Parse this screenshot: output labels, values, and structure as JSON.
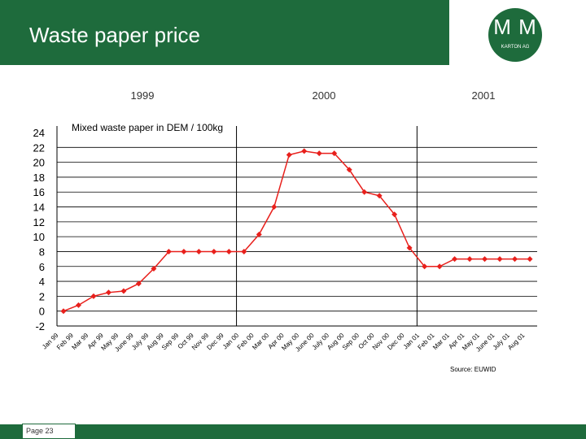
{
  "header": {
    "title": "Waste paper price",
    "logo_text": "M M",
    "logo_subtext": "KARTON AG"
  },
  "footer": {
    "page_label": "Page 23"
  },
  "colors": {
    "brand_green": "#1e6b3c",
    "series_red": "#e8201c"
  },
  "chart_data": {
    "type": "line",
    "title": "",
    "subtitle": "Mixed waste paper in DEM / 100kg",
    "xlabel": "",
    "ylabel": "",
    "ylim": [
      -2,
      24
    ],
    "yticks": [
      24,
      22,
      20,
      18,
      16,
      14,
      12,
      10,
      8,
      6,
      4,
      2,
      0,
      -2
    ],
    "grid": true,
    "year_labels": [
      "1999",
      "2000",
      "2001"
    ],
    "source": "Source: EUWID",
    "categories": [
      "Jan 99",
      "Feb 99",
      "Mar 99",
      "Apr 99",
      "May 99",
      "June 99",
      "July 99",
      "Aug 99",
      "Sep 99",
      "Oct 99",
      "Nov 99",
      "Dec 99",
      "Jan 00",
      "Feb 00",
      "Mar 00",
      "Apr 00",
      "May 00",
      "June 00",
      "July 00",
      "Aug 00",
      "Sep 00",
      "Oct 00",
      "Nov 00",
      "Dec 00",
      "Jan 01",
      "Feb 01",
      "Mar 01",
      "Apr 01",
      "May 01",
      "June 01",
      "July 01",
      "Aug 01"
    ],
    "series": [
      {
        "values": [
          0,
          0.8,
          2,
          2.5,
          2.7,
          3.7,
          5.7,
          8,
          8,
          8,
          8,
          8,
          8,
          10.3,
          14,
          21,
          21.5,
          21.2,
          21.2,
          19,
          16,
          15.5,
          13,
          8.5,
          6,
          6,
          7,
          7,
          7,
          7,
          7,
          7
        ]
      }
    ]
  }
}
